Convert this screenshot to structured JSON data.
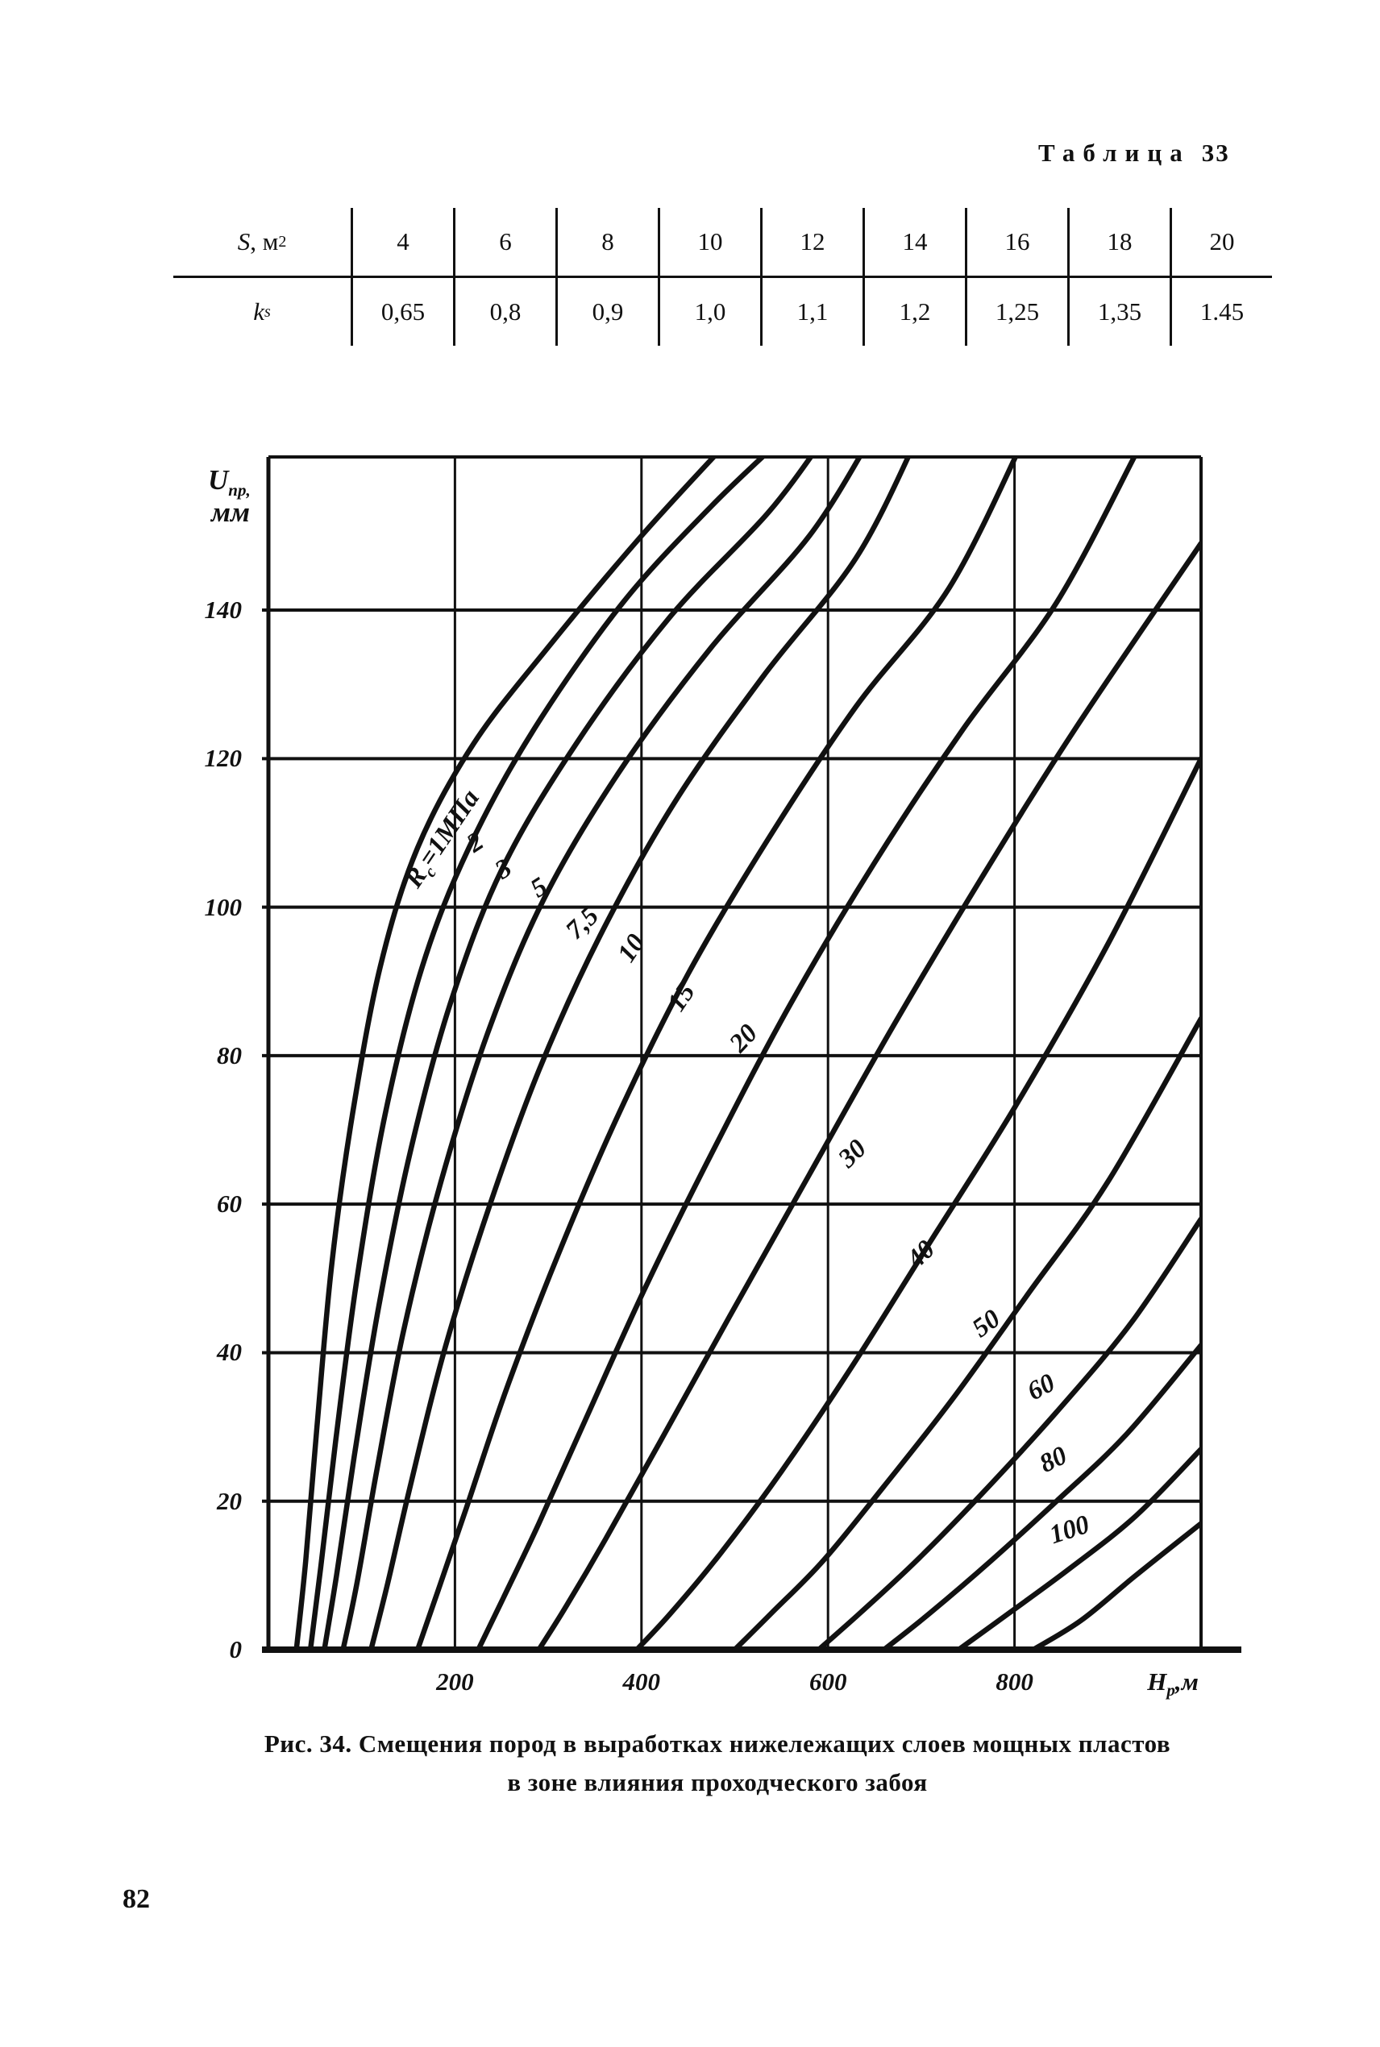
{
  "page": {
    "number": "82",
    "ink": "#111111",
    "background": "#ffffff"
  },
  "table": {
    "title_word": "Таблица",
    "title_number": "33",
    "header": {
      "symbol": "S",
      "unit_rest": ", м",
      "unit_sup": "2"
    },
    "row_label": {
      "symbol": "k",
      "sub": "s"
    },
    "columns": [
      "4",
      "6",
      "8",
      "10",
      "12",
      "14",
      "16",
      "18",
      "20"
    ],
    "values": [
      "0,65",
      "0,8",
      "0,9",
      "1,0",
      "1,1",
      "1,2",
      "1,25",
      "1,35",
      "1.45"
    ]
  },
  "figure": {
    "caption_line1": "Рис. 34. Смещения пород в выработках нижележащих слоев мощных пластов",
    "caption_line2": "в зоне влияния проходческого забоя",
    "axes": {
      "y_title_main": "U",
      "y_title_sub": "пр,",
      "y_title_line2": "мм",
      "x_title_main": "Н",
      "x_title_sub": "р",
      "x_title_rest": ",м",
      "y_tick_labels": [
        "0",
        "20",
        "40",
        "60",
        "80",
        "100",
        "120",
        "140"
      ],
      "x_tick_labels": [
        "200",
        "400",
        "600",
        "800"
      ]
    },
    "chart_data": {
      "type": "line",
      "title": "",
      "xlabel": "Нр, м",
      "ylabel": "Uпр, мм",
      "xlim": [
        0,
        1000
      ],
      "ylim": [
        0,
        160
      ],
      "grid": true,
      "x_tick_values": [
        200,
        400,
        600,
        800
      ],
      "y_tick_values": [
        0,
        20,
        40,
        60,
        80,
        100,
        120,
        140
      ],
      "series": [
        {
          "name": "Rc = 1 МПа",
          "label_pre": "R",
          "label_sub": "c",
          "label_post": "=1МПа",
          "lx": 549,
          "ly": 1041,
          "rot": -56,
          "points": [
            [
              30,
              0
            ],
            [
              40,
              12
            ],
            [
              52,
              30
            ],
            [
              68,
              52
            ],
            [
              90,
              72
            ],
            [
              120,
              92
            ],
            [
              160,
              108
            ],
            [
              220,
              122
            ],
            [
              300,
              135
            ],
            [
              400,
              150
            ],
            [
              495,
              163
            ]
          ]
        },
        {
          "name": "Rc = 2 МПа",
          "label_post": "2",
          "lx": 590,
          "ly": 1046,
          "rot": -33,
          "points": [
            [
              45,
              0
            ],
            [
              56,
              11
            ],
            [
              72,
              28
            ],
            [
              95,
              50
            ],
            [
              125,
              72
            ],
            [
              165,
              92
            ],
            [
              215,
              108
            ],
            [
              285,
              124
            ],
            [
              380,
              141
            ],
            [
              475,
              154
            ],
            [
              550,
              163
            ]
          ]
        },
        {
          "name": "Rc = 3 МПа",
          "label_post": "3",
          "lx": 625,
          "ly": 1079,
          "rot": -33,
          "points": [
            [
              60,
              0
            ],
            [
              73,
              10
            ],
            [
              92,
              26
            ],
            [
              118,
              46
            ],
            [
              152,
              67
            ],
            [
              195,
              87
            ],
            [
              250,
              105
            ],
            [
              330,
              122
            ],
            [
              430,
              139
            ],
            [
              535,
              153
            ],
            [
              595,
              163
            ]
          ]
        },
        {
          "name": "Rc = 5 МПа",
          "label_post": "5",
          "lx": 669,
          "ly": 1102,
          "rot": -33,
          "points": [
            [
              80,
              0
            ],
            [
              95,
              9
            ],
            [
              116,
              24
            ],
            [
              145,
              43
            ],
            [
              185,
              63
            ],
            [
              235,
              83
            ],
            [
              295,
              101
            ],
            [
              375,
              118
            ],
            [
              475,
              135
            ],
            [
              580,
              150
            ],
            [
              645,
              163
            ]
          ]
        },
        {
          "name": "Rc = 7,5 МПа",
          "label_post": "7,5",
          "lx": 723,
          "ly": 1146,
          "rot": -44,
          "points": [
            [
              110,
              0
            ],
            [
              128,
              9
            ],
            [
              152,
              22
            ],
            [
              188,
              40
            ],
            [
              235,
              59
            ],
            [
              290,
              78
            ],
            [
              355,
              96
            ],
            [
              435,
              114
            ],
            [
              530,
              131
            ],
            [
              630,
              147
            ],
            [
              695,
              163
            ]
          ]
        },
        {
          "name": "Rc = 10 МПа",
          "label_post": "10",
          "lx": 784,
          "ly": 1177,
          "rot": -56,
          "points": [
            [
              160,
              0
            ],
            [
              182,
              8
            ],
            [
              212,
              19
            ],
            [
              255,
              35
            ],
            [
              310,
              53
            ],
            [
              375,
              72
            ],
            [
              450,
              91
            ],
            [
              535,
              109
            ],
            [
              630,
              127
            ],
            [
              730,
              143
            ],
            [
              810,
              163
            ]
          ]
        },
        {
          "name": "Rc = 15 МПа",
          "label_post": "15",
          "lx": 846,
          "ly": 1238,
          "rot": -56,
          "points": [
            [
              225,
              0
            ],
            [
              252,
              7
            ],
            [
              290,
              17
            ],
            [
              340,
              31
            ],
            [
              405,
              49
            ],
            [
              480,
              68
            ],
            [
              560,
              87
            ],
            [
              650,
              106
            ],
            [
              745,
              124
            ],
            [
              845,
              141
            ],
            [
              930,
              161
            ]
          ]
        },
        {
          "name": "Rc = 20 МПа",
          "label_post": "20",
          "lx": 923,
          "ly": 1289,
          "rot": -47,
          "points": [
            [
              290,
              0
            ],
            [
              320,
              6
            ],
            [
              362,
              15
            ],
            [
              420,
              28
            ],
            [
              495,
              45
            ],
            [
              580,
              64
            ],
            [
              670,
              84
            ],
            [
              765,
              104
            ],
            [
              865,
              124
            ],
            [
              1000,
              149
            ]
          ]
        },
        {
          "name": "Rc = 30 МПа",
          "label_post": "30",
          "lx": 1058,
          "ly": 1432,
          "rot": -44,
          "points": [
            [
              395,
              0
            ],
            [
              432,
              5
            ],
            [
              485,
              13
            ],
            [
              550,
              24
            ],
            [
              625,
              38
            ],
            [
              710,
              55
            ],
            [
              800,
              73
            ],
            [
              900,
              95
            ],
            [
              1000,
              120
            ]
          ]
        },
        {
          "name": "Rc = 40 МПа",
          "label_post": "40",
          "lx": 1143,
          "ly": 1557,
          "rot": -44,
          "points": [
            [
              500,
              0
            ],
            [
              540,
              5
            ],
            [
              595,
              12
            ],
            [
              660,
              22
            ],
            [
              735,
              34
            ],
            [
              815,
              48
            ],
            [
              900,
              63
            ],
            [
              1000,
              85
            ]
          ]
        },
        {
          "name": "Rc = 50 МПа",
          "label_post": "50",
          "lx": 1224,
          "ly": 1643,
          "rot": -36,
          "points": [
            [
              590,
              0
            ],
            [
              635,
              5
            ],
            [
              695,
              12
            ],
            [
              765,
              21
            ],
            [
              845,
              32
            ],
            [
              925,
              44
            ],
            [
              1000,
              58
            ]
          ]
        },
        {
          "name": "Rc = 60 МПа",
          "label_post": "60",
          "lx": 1292,
          "ly": 1722,
          "rot": -28,
          "points": [
            [
              660,
              0
            ],
            [
              710,
              5
            ],
            [
              775,
              12
            ],
            [
              845,
              20
            ],
            [
              920,
              29
            ],
            [
              1000,
              41
            ]
          ]
        },
        {
          "name": "Rc = 80 МПа",
          "label_post": "80",
          "lx": 1307,
          "ly": 1812,
          "rot": -26,
          "points": [
            [
              740,
              0
            ],
            [
              795,
              5
            ],
            [
              860,
              11
            ],
            [
              930,
              18
            ],
            [
              1000,
              27
            ]
          ]
        },
        {
          "name": "Rc = 100 МПа",
          "label_post": "100",
          "lx": 1327,
          "ly": 1899,
          "rot": -18,
          "points": [
            [
              820,
              0
            ],
            [
              872,
              4
            ],
            [
              930,
              10
            ],
            [
              1000,
              17
            ]
          ]
        }
      ],
      "plot_geometry": {
        "x0": 333,
        "sx": 1.157,
        "y0": 2047,
        "sy": 9.214,
        "top": 567,
        "right": 1490,
        "axis_left": 325,
        "axis_right": 1540
      }
    }
  }
}
